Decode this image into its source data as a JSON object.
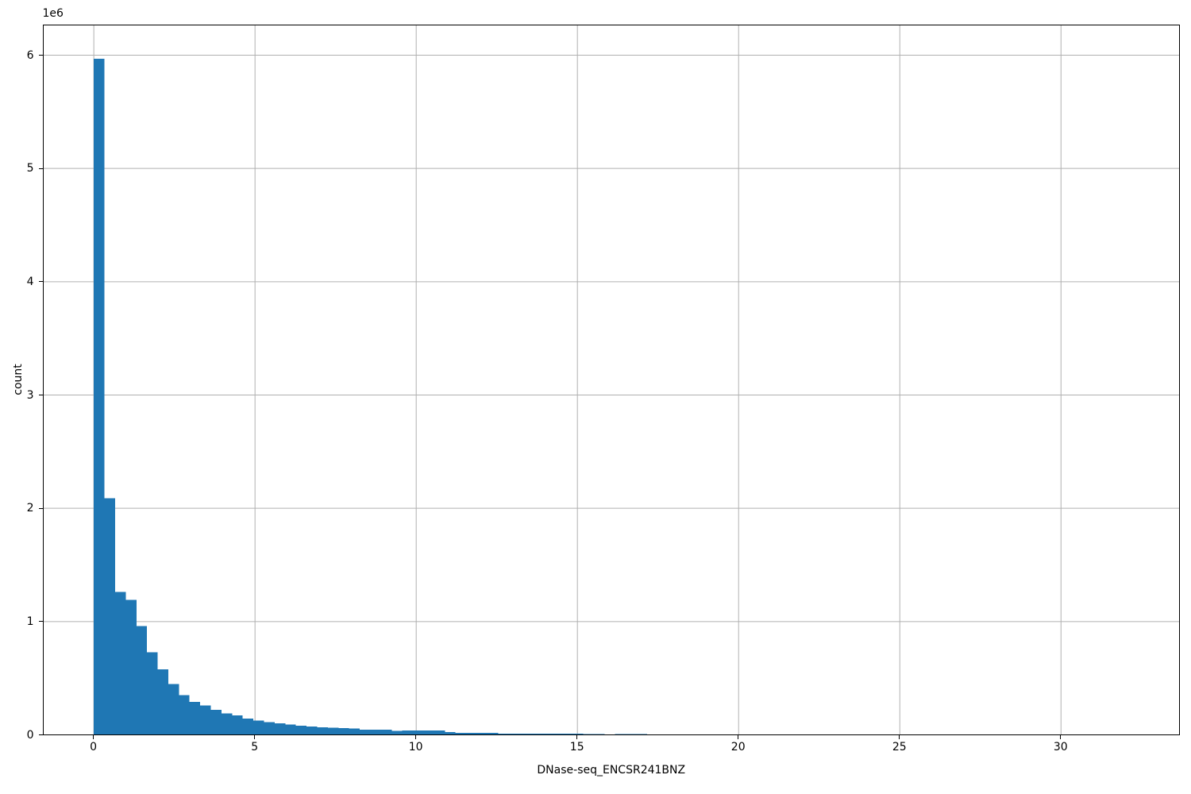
{
  "figure": {
    "background": "#ffffff"
  },
  "chart_data": {
    "type": "bar",
    "subtype": "histogram",
    "title": "",
    "xlabel": "DNase-seq_ENCSR241BNZ",
    "ylabel": "count",
    "offset_text": "1e6",
    "bar_color": "#1f77b4",
    "grid_color": "#b0b0b0",
    "spine_color": "#000000",
    "grid": true,
    "legend": false,
    "xlim": [
      -1.58,
      33.7
    ],
    "ylim": [
      0,
      6270000
    ],
    "x_ticks": [
      0,
      5,
      10,
      15,
      20,
      25,
      30
    ],
    "x_tick_labels": [
      "0",
      "5",
      "10",
      "15",
      "20",
      "25",
      "30"
    ],
    "y_ticks": [
      0,
      1000000,
      2000000,
      3000000,
      4000000,
      5000000,
      6000000
    ],
    "y_tick_labels": [
      "0",
      "1",
      "2",
      "3",
      "4",
      "5",
      "6"
    ],
    "bin_start": 0,
    "bin_width": 0.33,
    "counts": [
      5970000,
      2090000,
      1260000,
      1190000,
      960000,
      730000,
      580000,
      450000,
      350000,
      290000,
      260000,
      220000,
      190000,
      170000,
      143000,
      127000,
      112000,
      100000,
      92000,
      79000,
      75000,
      65000,
      63000,
      58000,
      56000,
      47000,
      45000,
      44000,
      35000,
      40000,
      37000,
      37000,
      37000,
      26000,
      19000,
      19000,
      19000,
      19000,
      12000,
      12000,
      12000,
      12000,
      12000,
      10000,
      10000,
      10000,
      8000,
      8000,
      0,
      8000,
      8000,
      8000
    ]
  }
}
